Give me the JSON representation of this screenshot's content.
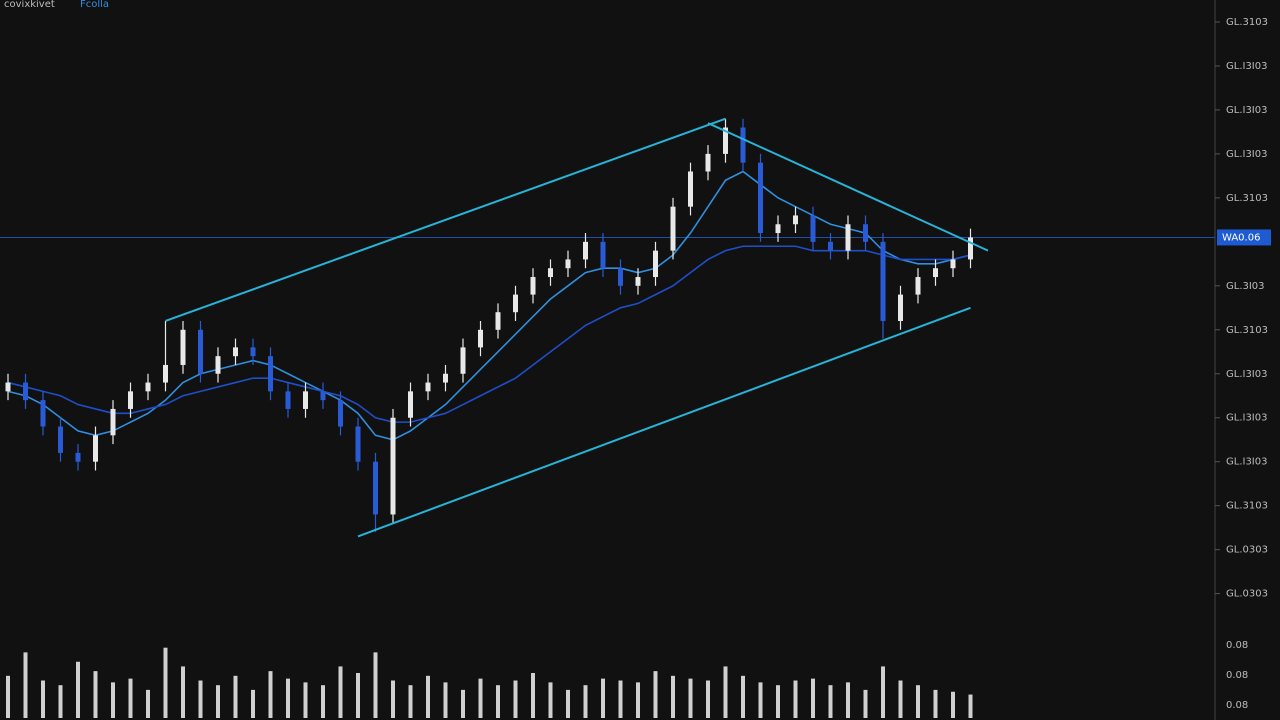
{
  "chart_data": {
    "type": "candlestick",
    "title": "covixkivet",
    "subtitle": "Fcolla",
    "open": [
      36,
      38,
      34,
      28,
      22,
      20,
      26,
      32,
      36,
      38,
      42,
      50,
      40,
      44,
      46,
      44,
      36,
      32,
      36,
      34,
      28,
      20,
      8,
      30,
      36,
      38,
      40,
      46,
      50,
      54,
      58,
      62,
      64,
      66,
      70,
      64,
      60,
      62,
      68,
      78,
      86,
      90,
      96,
      88,
      72,
      74,
      76,
      70,
      68,
      74,
      70,
      52,
      58,
      62,
      64,
      66
    ],
    "high": [
      40,
      40,
      36,
      30,
      24,
      28,
      34,
      38,
      40,
      52,
      52,
      52,
      46,
      48,
      48,
      46,
      38,
      38,
      38,
      36,
      30,
      22,
      32,
      38,
      40,
      42,
      48,
      52,
      56,
      60,
      64,
      66,
      68,
      72,
      72,
      66,
      64,
      70,
      80,
      88,
      92,
      98,
      98,
      90,
      76,
      78,
      78,
      72,
      76,
      76,
      72,
      60,
      64,
      66,
      68,
      73
    ],
    "low": [
      34,
      32,
      26,
      20,
      18,
      18,
      24,
      30,
      34,
      36,
      40,
      38,
      38,
      42,
      42,
      34,
      30,
      30,
      32,
      26,
      18,
      4,
      6,
      28,
      34,
      36,
      38,
      44,
      48,
      52,
      56,
      60,
      62,
      64,
      62,
      58,
      58,
      60,
      66,
      76,
      84,
      88,
      86,
      70,
      70,
      72,
      68,
      66,
      66,
      68,
      48,
      50,
      56,
      60,
      62,
      64
    ],
    "close": [
      38,
      34,
      28,
      22,
      20,
      26,
      32,
      36,
      38,
      42,
      50,
      40,
      44,
      46,
      44,
      36,
      32,
      36,
      34,
      28,
      20,
      8,
      30,
      36,
      38,
      40,
      46,
      50,
      54,
      58,
      62,
      64,
      66,
      70,
      64,
      60,
      62,
      68,
      78,
      86,
      90,
      96,
      88,
      72,
      74,
      76,
      70,
      68,
      74,
      70,
      52,
      58,
      62,
      64,
      66,
      71
    ],
    "up_color": "#e8e8e8",
    "down_color": "#2a5bd7",
    "moving_averages": [
      {
        "color": "#2f8fe0",
        "values": [
          36,
          35,
          33,
          30,
          27,
          26,
          27,
          29,
          31,
          34,
          38,
          40,
          41,
          42,
          43,
          42,
          40,
          38,
          36,
          34,
          31,
          26,
          25,
          27,
          30,
          33,
          37,
          41,
          45,
          49,
          53,
          57,
          60,
          63,
          64,
          64,
          63,
          64,
          67,
          72,
          78,
          84,
          86,
          83,
          80,
          78,
          76,
          74,
          73,
          72,
          68,
          66,
          65,
          65,
          66,
          67
        ]
      },
      {
        "color": "#1f4fc8",
        "values": [
          38,
          37,
          36,
          35,
          33,
          32,
          31,
          31,
          32,
          33,
          35,
          36,
          37,
          38,
          39,
          39,
          38,
          37,
          36,
          35,
          33,
          30,
          29,
          29,
          30,
          31,
          33,
          35,
          37,
          39,
          42,
          45,
          48,
          51,
          53,
          55,
          56,
          58,
          60,
          63,
          66,
          68,
          69,
          69,
          69,
          69,
          68,
          68,
          68,
          68,
          67,
          66,
          66,
          66,
          66,
          67
        ]
      }
    ],
    "trendlines": [
      {
        "color": "#27b4d8",
        "x": [
          9,
          41
        ],
        "y": [
          52,
          98
        ]
      },
      {
        "color": "#27b4d8",
        "x": [
          40,
          56
        ],
        "y": [
          97,
          68
        ]
      },
      {
        "color": "#27b4d8",
        "x": [
          20,
          55
        ],
        "y": [
          3,
          55
        ]
      }
    ],
    "ylim": [
      -16,
      125
    ],
    "yticks": [
      {
        "value": 120,
        "label": "GL.3103"
      },
      {
        "value": 110,
        "label": "GL.I3I03"
      },
      {
        "value": 100,
        "label": "GL.I3I03"
      },
      {
        "value": 90,
        "label": "GL.I3I03"
      },
      {
        "value": 80,
        "label": "GL.3103"
      },
      {
        "value": 60,
        "label": "GL.3I03"
      },
      {
        "value": 50,
        "label": "GL.3103"
      },
      {
        "value": 40,
        "label": "GL.I3I03"
      },
      {
        "value": 30,
        "label": "GL.I3I03"
      },
      {
        "value": 20,
        "label": "GL.I3I03"
      },
      {
        "value": 10,
        "label": "GL.3103"
      },
      {
        "value": 0,
        "label": "GL.0303"
      },
      {
        "value": -10,
        "label": "GL.0303"
      }
    ],
    "price_line": 71,
    "price_label": "WA0.06",
    "volume": [
      45,
      70,
      40,
      35,
      60,
      50,
      38,
      42,
      30,
      75,
      55,
      40,
      35,
      45,
      30,
      50,
      42,
      38,
      35,
      55,
      48,
      70,
      40,
      35,
      45,
      38,
      30,
      42,
      35,
      40,
      48,
      38,
      30,
      35,
      42,
      40,
      38,
      50,
      45,
      42,
      40,
      55,
      45,
      38,
      35,
      40,
      42,
      35,
      38,
      30,
      55,
      40,
      35,
      30,
      28,
      25
    ],
    "volume_color": "#d0d0d0",
    "volume_lim": [
      0,
      80
    ],
    "volume_labels": [
      "0.08",
      "0.08",
      "0.08"
    ]
  }
}
